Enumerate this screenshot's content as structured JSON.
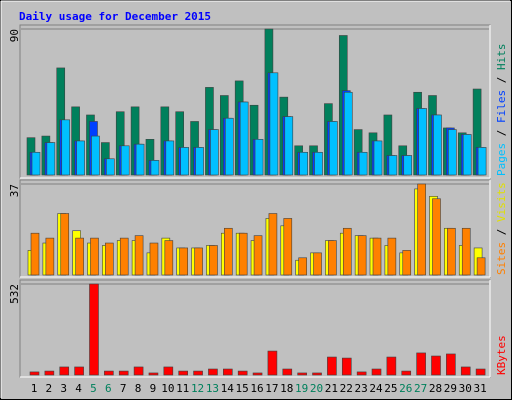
{
  "chart_data": [
    {
      "type": "bar",
      "title": "Daily usage for December 2015",
      "ylim": [
        0,
        90
      ],
      "yticks": [
        90
      ],
      "series": [
        {
          "name": "Hits",
          "color": "#00805c",
          "values": [
            23,
            24,
            66,
            42,
            37,
            20,
            39,
            42,
            22,
            42,
            39,
            33,
            54,
            49,
            58,
            43,
            90,
            48,
            18,
            18,
            44,
            86,
            28,
            26,
            37,
            18,
            51,
            49,
            29,
            26,
            53
          ]
        },
        {
          "name": "Files",
          "color": "#0040ff",
          "values": [
            14,
            20,
            34,
            21,
            33,
            10,
            18,
            19,
            9,
            21,
            17,
            17,
            28,
            35,
            45,
            22,
            63,
            36,
            14,
            14,
            33,
            52,
            14,
            21,
            12,
            12,
            41,
            37,
            29,
            25,
            17
          ]
        },
        {
          "name": "Pages",
          "color": "#00c0ff",
          "values": [
            14,
            20,
            34,
            21,
            24,
            10,
            18,
            19,
            9,
            21,
            17,
            17,
            28,
            35,
            45,
            22,
            63,
            36,
            14,
            14,
            33,
            51,
            14,
            21,
            12,
            12,
            41,
            37,
            28,
            25,
            17
          ]
        }
      ],
      "legend_separator": "/"
    },
    {
      "type": "bar",
      "ylim": [
        0,
        37
      ],
      "yticks": [
        37
      ],
      "series": [
        {
          "name": "Visits",
          "color": "#ffff00",
          "values": [
            10,
            13,
            25,
            18,
            13,
            12,
            14,
            14,
            9,
            15,
            11,
            11,
            12,
            17,
            17,
            14,
            23,
            20,
            6,
            9,
            14,
            17,
            16,
            15,
            12,
            9,
            35,
            32,
            19,
            12,
            11
          ]
        },
        {
          "name": "Sites",
          "color": "#ff8000",
          "values": [
            17,
            15,
            25,
            15,
            15,
            13,
            15,
            16,
            13,
            14,
            11,
            11,
            12,
            19,
            17,
            16,
            25,
            23,
            7,
            9,
            14,
            19,
            16,
            15,
            15,
            10,
            37,
            31,
            19,
            19,
            7
          ]
        }
      ],
      "legend_separator": "/"
    },
    {
      "type": "bar",
      "ylim": [
        0,
        532
      ],
      "yticks": [
        532
      ],
      "series": [
        {
          "name": "KBytes",
          "color": "#ff0000",
          "values": [
            18,
            23,
            47,
            47,
            532,
            23,
            23,
            47,
            12,
            47,
            23,
            23,
            35,
            35,
            23,
            12,
            140,
            35,
            12,
            12,
            105,
            99,
            18,
            35,
            105,
            23,
            129,
            111,
            123,
            47,
            35
          ]
        }
      ],
      "categories": [
        "1",
        "2",
        "3",
        "4",
        "5",
        "6",
        "7",
        "8",
        "9",
        "10",
        "11",
        "12",
        "13",
        "14",
        "15",
        "16",
        "17",
        "18",
        "19",
        "20",
        "21",
        "22",
        "23",
        "24",
        "25",
        "26",
        "27",
        "28",
        "29",
        "30",
        "31"
      ],
      "category_colors": [
        "#000000",
        "#000000",
        "#000000",
        "#000000",
        "#00805c",
        "#00805c",
        "#000000",
        "#000000",
        "#000000",
        "#000000",
        "#000000",
        "#00805c",
        "#00805c",
        "#000000",
        "#000000",
        "#000000",
        "#000000",
        "#000000",
        "#00805c",
        "#00805c",
        "#000000",
        "#000000",
        "#000000",
        "#000000",
        "#000000",
        "#00805c",
        "#00805c",
        "#000000",
        "#000000",
        "#000000",
        "#000000"
      ]
    }
  ]
}
